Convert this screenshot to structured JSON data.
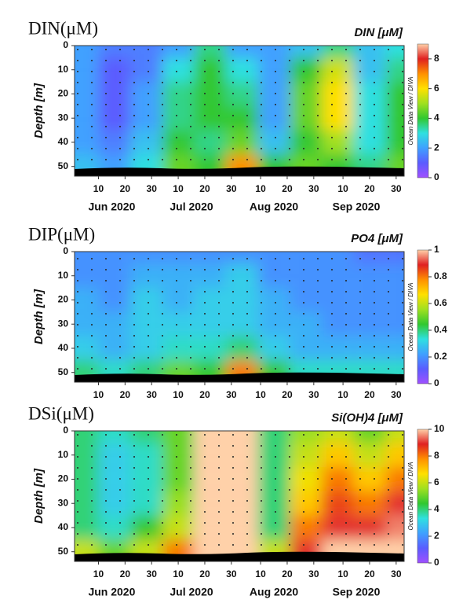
{
  "chart_data": [
    {
      "type": "heatmap",
      "title": "DIN(μM)",
      "subtitle": "DIN [μM]",
      "ylabel": "Depth [m]",
      "colorbar_label": "Ocean Data View / DIVA",
      "x": [
        156,
        168,
        180,
        192,
        204,
        216,
        228,
        240,
        252,
        264,
        276
      ],
      "y": [
        0,
        10,
        20,
        30,
        40,
        50
      ],
      "z": [
        [
          2,
          1.5,
          1.5,
          2,
          3.5,
          2,
          2,
          2.5,
          3.5,
          2.5,
          3
        ],
        [
          2,
          1,
          1.5,
          3,
          4,
          3,
          2,
          4,
          5.5,
          2.5,
          3.5
        ],
        [
          2,
          1,
          2,
          3.5,
          4,
          3.5,
          2,
          4.5,
          6,
          3,
          4
        ],
        [
          2,
          1,
          2,
          3.5,
          4,
          4,
          2,
          4.5,
          6,
          3,
          4
        ],
        [
          2,
          1.5,
          2.5,
          4,
          3.5,
          4.5,
          2.5,
          4,
          5,
          3,
          4
        ],
        [
          2.5,
          2,
          3,
          4.5,
          4,
          7,
          4,
          4.5,
          4,
          3.5,
          4.5
        ]
      ],
      "xlim": [
        153,
        277
      ],
      "ylim": [
        54,
        0
      ],
      "yticks": [
        0,
        10,
        20,
        30,
        40,
        50
      ],
      "xticks": [
        {
          "value": 162,
          "label": "10"
        },
        {
          "value": 172,
          "label": "20"
        },
        {
          "value": 182,
          "label": "30"
        },
        {
          "value": 192,
          "label": "10"
        },
        {
          "value": 202,
          "label": "20"
        },
        {
          "value": 212,
          "label": "30"
        },
        {
          "value": 223,
          "label": "10"
        },
        {
          "value": 233,
          "label": "20"
        },
        {
          "value": 243,
          "label": "30"
        },
        {
          "value": 254,
          "label": "10"
        },
        {
          "value": 264,
          "label": "20"
        },
        {
          "value": 274,
          "label": "30"
        }
      ],
      "month_labels": [
        {
          "value": 167,
          "label": "Jun 2020"
        },
        {
          "value": 197,
          "label": "Jul 2020"
        },
        {
          "value": 228,
          "label": "Aug 2020"
        },
        {
          "value": 259,
          "label": "Sep 2020"
        }
      ],
      "zlim": [
        0,
        9
      ],
      "zticks": [
        0,
        2,
        4,
        6,
        8
      ],
      "colormap": [
        "#a050ff",
        "#5a5cff",
        "#3fa0ff",
        "#2fe0e0",
        "#30c830",
        "#a0e020",
        "#ffe000",
        "#ff9000",
        "#e02020",
        "#ffd0a8"
      ]
    },
    {
      "type": "heatmap",
      "title": "DIP(μM)",
      "subtitle": "PO4 [μM]",
      "ylabel": "Depth [m]",
      "colorbar_label": "Ocean Data View / DIVA",
      "x": [
        156,
        168,
        180,
        192,
        204,
        216,
        228,
        240,
        252,
        264,
        276
      ],
      "y": [
        0,
        10,
        20,
        30,
        40,
        50
      ],
      "z": [
        [
          0.2,
          0.2,
          0.2,
          0.2,
          0.2,
          0.2,
          0.2,
          0.2,
          0.2,
          0.15,
          0.15
        ],
        [
          0.2,
          0.2,
          0.25,
          0.25,
          0.25,
          0.3,
          0.2,
          0.2,
          0.2,
          0.2,
          0.2
        ],
        [
          0.25,
          0.2,
          0.3,
          0.25,
          0.3,
          0.3,
          0.25,
          0.2,
          0.2,
          0.2,
          0.2
        ],
        [
          0.25,
          0.25,
          0.3,
          0.3,
          0.3,
          0.3,
          0.25,
          0.25,
          0.2,
          0.2,
          0.2
        ],
        [
          0.3,
          0.25,
          0.3,
          0.35,
          0.35,
          0.4,
          0.3,
          0.25,
          0.25,
          0.25,
          0.25
        ],
        [
          0.4,
          0.35,
          0.4,
          0.5,
          0.45,
          0.8,
          0.45,
          0.35,
          0.35,
          0.35,
          0.35
        ]
      ],
      "xlim": [
        153,
        277
      ],
      "ylim": [
        54,
        0
      ],
      "yticks": [
        0,
        10,
        20,
        30,
        40,
        50
      ],
      "xticks": [
        {
          "value": 162,
          "label": "10"
        },
        {
          "value": 172,
          "label": "20"
        },
        {
          "value": 182,
          "label": "30"
        },
        {
          "value": 192,
          "label": "10"
        },
        {
          "value": 202,
          "label": "20"
        },
        {
          "value": 212,
          "label": "30"
        },
        {
          "value": 223,
          "label": "10"
        },
        {
          "value": 233,
          "label": "20"
        },
        {
          "value": 243,
          "label": "30"
        },
        {
          "value": 254,
          "label": "10"
        },
        {
          "value": 264,
          "label": "20"
        },
        {
          "value": 274,
          "label": "30"
        }
      ],
      "zlim": [
        0,
        1
      ],
      "zticks": [
        0,
        0.2,
        0.4,
        0.6,
        0.8,
        1
      ],
      "colormap": [
        "#a050ff",
        "#5a5cff",
        "#3fa0ff",
        "#2fe0e0",
        "#30c830",
        "#a0e020",
        "#ffe000",
        "#ff9000",
        "#e02020",
        "#ffd0a8"
      ]
    },
    {
      "type": "heatmap",
      "title": "DSi(μM)",
      "subtitle": "Si(OH)4 [μM]",
      "ylabel": "Depth [m]",
      "colorbar_label": "Ocean Data View / DIVA",
      "x": [
        156,
        168,
        180,
        192,
        204,
        216,
        228,
        240,
        252,
        264,
        276
      ],
      "y": [
        0,
        10,
        20,
        30,
        40,
        50
      ],
      "z": [
        [
          4,
          3.5,
          4,
          5,
          10,
          10,
          4,
          5.5,
          6,
          5,
          6
        ],
        [
          4,
          3,
          3.5,
          5,
          10,
          10,
          4,
          6,
          7,
          6,
          7
        ],
        [
          4,
          3,
          3.5,
          5,
          10,
          10,
          4,
          6.5,
          8,
          7,
          8
        ],
        [
          4,
          3,
          3.5,
          5.5,
          10,
          10,
          4,
          7,
          8.5,
          8,
          9
        ],
        [
          4,
          3.5,
          4.5,
          6,
          10,
          10,
          4,
          8,
          9,
          9,
          9.5
        ],
        [
          6,
          5,
          6,
          8,
          10,
          10,
          6,
          9,
          10,
          10,
          10
        ]
      ],
      "xlim": [
        153,
        277
      ],
      "ylim": [
        54,
        0
      ],
      "yticks": [
        0,
        10,
        20,
        30,
        40,
        50
      ],
      "xticks": [
        {
          "value": 162,
          "label": "10"
        },
        {
          "value": 172,
          "label": "20"
        },
        {
          "value": 182,
          "label": "30"
        },
        {
          "value": 192,
          "label": "10"
        },
        {
          "value": 202,
          "label": "20"
        },
        {
          "value": 212,
          "label": "30"
        },
        {
          "value": 223,
          "label": "10"
        },
        {
          "value": 233,
          "label": "20"
        },
        {
          "value": 243,
          "label": "30"
        },
        {
          "value": 254,
          "label": "10"
        },
        {
          "value": 264,
          "label": "20"
        },
        {
          "value": 274,
          "label": "30"
        }
      ],
      "month_labels": [
        {
          "value": 167,
          "label": "Jun 2020"
        },
        {
          "value": 197,
          "label": "Jul 2020"
        },
        {
          "value": 228,
          "label": "Aug 2020"
        },
        {
          "value": 259,
          "label": "Sep 2020"
        }
      ],
      "zlim": [
        0,
        10
      ],
      "zticks": [
        0,
        2,
        4,
        6,
        8,
        10
      ],
      "colormap": [
        "#a050ff",
        "#5a5cff",
        "#3fa0ff",
        "#2fe0e0",
        "#30c830",
        "#a0e020",
        "#ffe000",
        "#ff9000",
        "#e02020",
        "#ffd0a8"
      ]
    }
  ]
}
